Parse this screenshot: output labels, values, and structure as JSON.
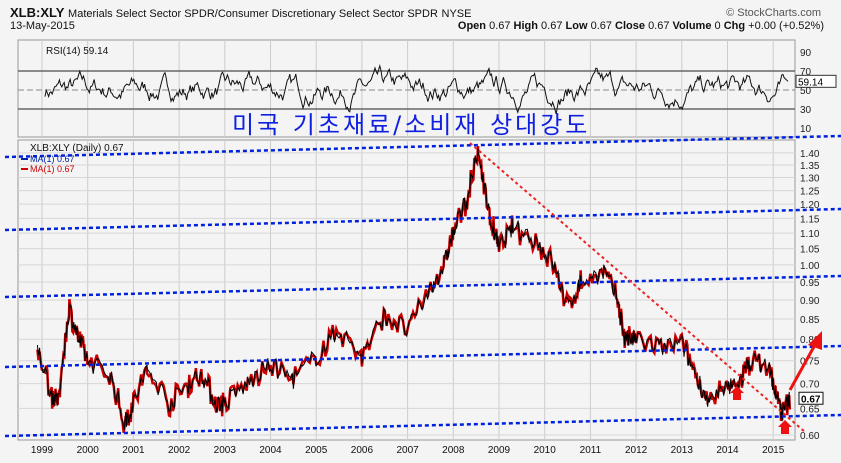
{
  "header": {
    "symbol": "XLB:XLY",
    "name": "Materials Select Sector SPDR/Consumer Discretionary Select Sector SPDR",
    "exchange": "NYSE",
    "date": "13-May-2015",
    "brand": "© StockCharts.com",
    "ohlc": [
      {
        "label": "Open",
        "value": "0.67"
      },
      {
        "label": "High",
        "value": "0.67"
      },
      {
        "label": "Low",
        "value": "0.67"
      },
      {
        "label": "Close",
        "value": "0.67"
      },
      {
        "label": "Volume",
        "value": "0"
      },
      {
        "label": "Chg",
        "value": "+0.00 (+0.52%)"
      }
    ]
  },
  "annotation_title": "미국 기초재료/소비재 상대강도",
  "colors": {
    "price": "#000000",
    "ma": "#cc0000",
    "trend": "#0022dd",
    "downtrend": "#ee2222",
    "arrow": "#ee1111"
  },
  "chart_data": [
    {
      "type": "line",
      "title": "RSI(14) 59.14",
      "ylim": [
        0,
        100
      ],
      "yticks": [
        90,
        70,
        50,
        30,
        10
      ],
      "levels": [
        70,
        50,
        30
      ],
      "last_value": "59.14",
      "series": [
        {
          "name": "RSI(14)",
          "generated": "oscillating 25-80 around 50"
        }
      ]
    },
    {
      "type": "line",
      "title": "XLB:XLY (Daily) 0.67",
      "legend": [
        "MA(1) 0.67",
        "MA(1) 0.67"
      ],
      "yscale": "log",
      "ylim": [
        0.6,
        1.45
      ],
      "yticks": [
        "1.40",
        "1.35",
        "1.30",
        "1.25",
        "1.20",
        "1.15",
        "1.10",
        "1.05",
        "1.00",
        "0.95",
        "0.90",
        "0.85",
        "0.80",
        "0.75",
        "0.70",
        "0.65",
        "0.60"
      ],
      "xticks": [
        "1999",
        "2000",
        "2001",
        "2002",
        "2003",
        "2004",
        "2005",
        "2006",
        "2007",
        "2008",
        "2009",
        "2010",
        "2011",
        "2012",
        "2013",
        "2014",
        "2015"
      ],
      "last_value": "0.67",
      "series": [
        {
          "name": "XLB:XLY",
          "points": [
            [
              1998.9,
              0.78
            ],
            [
              1999.2,
              0.68
            ],
            [
              1999.35,
              0.66
            ],
            [
              1999.6,
              0.88
            ],
            [
              1999.8,
              0.8
            ],
            [
              2000.0,
              0.75
            ],
            [
              2000.5,
              0.72
            ],
            [
              2000.8,
              0.62
            ],
            [
              2001.0,
              0.66
            ],
            [
              2001.3,
              0.73
            ],
            [
              2001.8,
              0.66
            ],
            [
              2002.2,
              0.7
            ],
            [
              2002.5,
              0.72
            ],
            [
              2002.8,
              0.66
            ],
            [
              2003.0,
              0.66
            ],
            [
              2003.5,
              0.7
            ],
            [
              2004.0,
              0.74
            ],
            [
              2004.5,
              0.71
            ],
            [
              2005.0,
              0.76
            ],
            [
              2005.5,
              0.82
            ],
            [
              2006.0,
              0.76
            ],
            [
              2006.5,
              0.86
            ],
            [
              2007.0,
              0.82
            ],
            [
              2007.5,
              0.93
            ],
            [
              2007.8,
              1.0
            ],
            [
              2008.0,
              1.1
            ],
            [
              2008.3,
              1.22
            ],
            [
              2008.55,
              1.4
            ],
            [
              2008.8,
              1.15
            ],
            [
              2009.0,
              1.05
            ],
            [
              2009.3,
              1.12
            ],
            [
              2009.8,
              1.08
            ],
            [
              2010.2,
              1.0
            ],
            [
              2010.5,
              0.88
            ],
            [
              2010.8,
              0.95
            ],
            [
              2011.3,
              0.98
            ],
            [
              2011.6,
              0.9
            ],
            [
              2011.75,
              0.8
            ],
            [
              2012.0,
              0.8
            ],
            [
              2012.5,
              0.78
            ],
            [
              2013.0,
              0.79
            ],
            [
              2013.3,
              0.72
            ],
            [
              2013.6,
              0.66
            ],
            [
              2014.0,
              0.69
            ],
            [
              2014.3,
              0.71
            ],
            [
              2014.5,
              0.75
            ],
            [
              2014.9,
              0.74
            ],
            [
              2015.05,
              0.68
            ],
            [
              2015.2,
              0.64
            ],
            [
              2015.37,
              0.67
            ]
          ]
        }
      ],
      "trendlines": "five parallel blue dotted support/resistance lines, red dotted downtrend from 2008 peak, red arrows indicating rebound"
    }
  ]
}
